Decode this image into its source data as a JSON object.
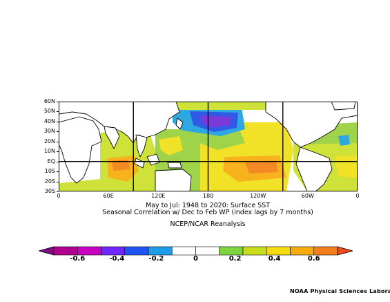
{
  "map": {
    "y_labels": [
      "60N",
      "50N",
      "40N",
      "30N",
      "20N",
      "10N",
      "EQ",
      "10S",
      "20S",
      "30S"
    ],
    "x_labels": [
      "0",
      "60E",
      "120E",
      "180",
      "120W",
      "60W",
      "0"
    ],
    "colors": {
      "neg_strong": "#8a0aa0",
      "neg_mid": "#7a3ad8",
      "neg_blue": "#2f5ae6",
      "neg_light": "#2ea8e0",
      "neutral": "#ffffff",
      "pos_green": "#9fd34a",
      "pos_yellowgreen": "#cfe23a",
      "pos_yellow": "#f2e227",
      "pos_orange": "#f7b21e",
      "pos_deeporange": "#f58a24"
    }
  },
  "caption": {
    "line1": "May to Jul: 1948 to 2020: Surface SST",
    "line2": "Seasonal Correlation w/ Dec to Feb WP (index lags by 7 months)",
    "line3": "NCEP/NCAR Reanalysis"
  },
  "colorbar": {
    "labels": [
      "-0.6",
      "-0.4",
      "-0.2",
      "0",
      "0.2",
      "0.4",
      "0.6"
    ],
    "colors": [
      "#7b0c80",
      "#b1008f",
      "#c800c0",
      "#7026ff",
      "#1d55f5",
      "#1f9ce8",
      "#ffffff",
      "#ffffff",
      "#7ed33e",
      "#c8dc1e",
      "#f5dc12",
      "#f6ac10",
      "#f47d1c",
      "#ee4a1a"
    ]
  },
  "credit": "NOAA Physical Sciences Laboratory"
}
